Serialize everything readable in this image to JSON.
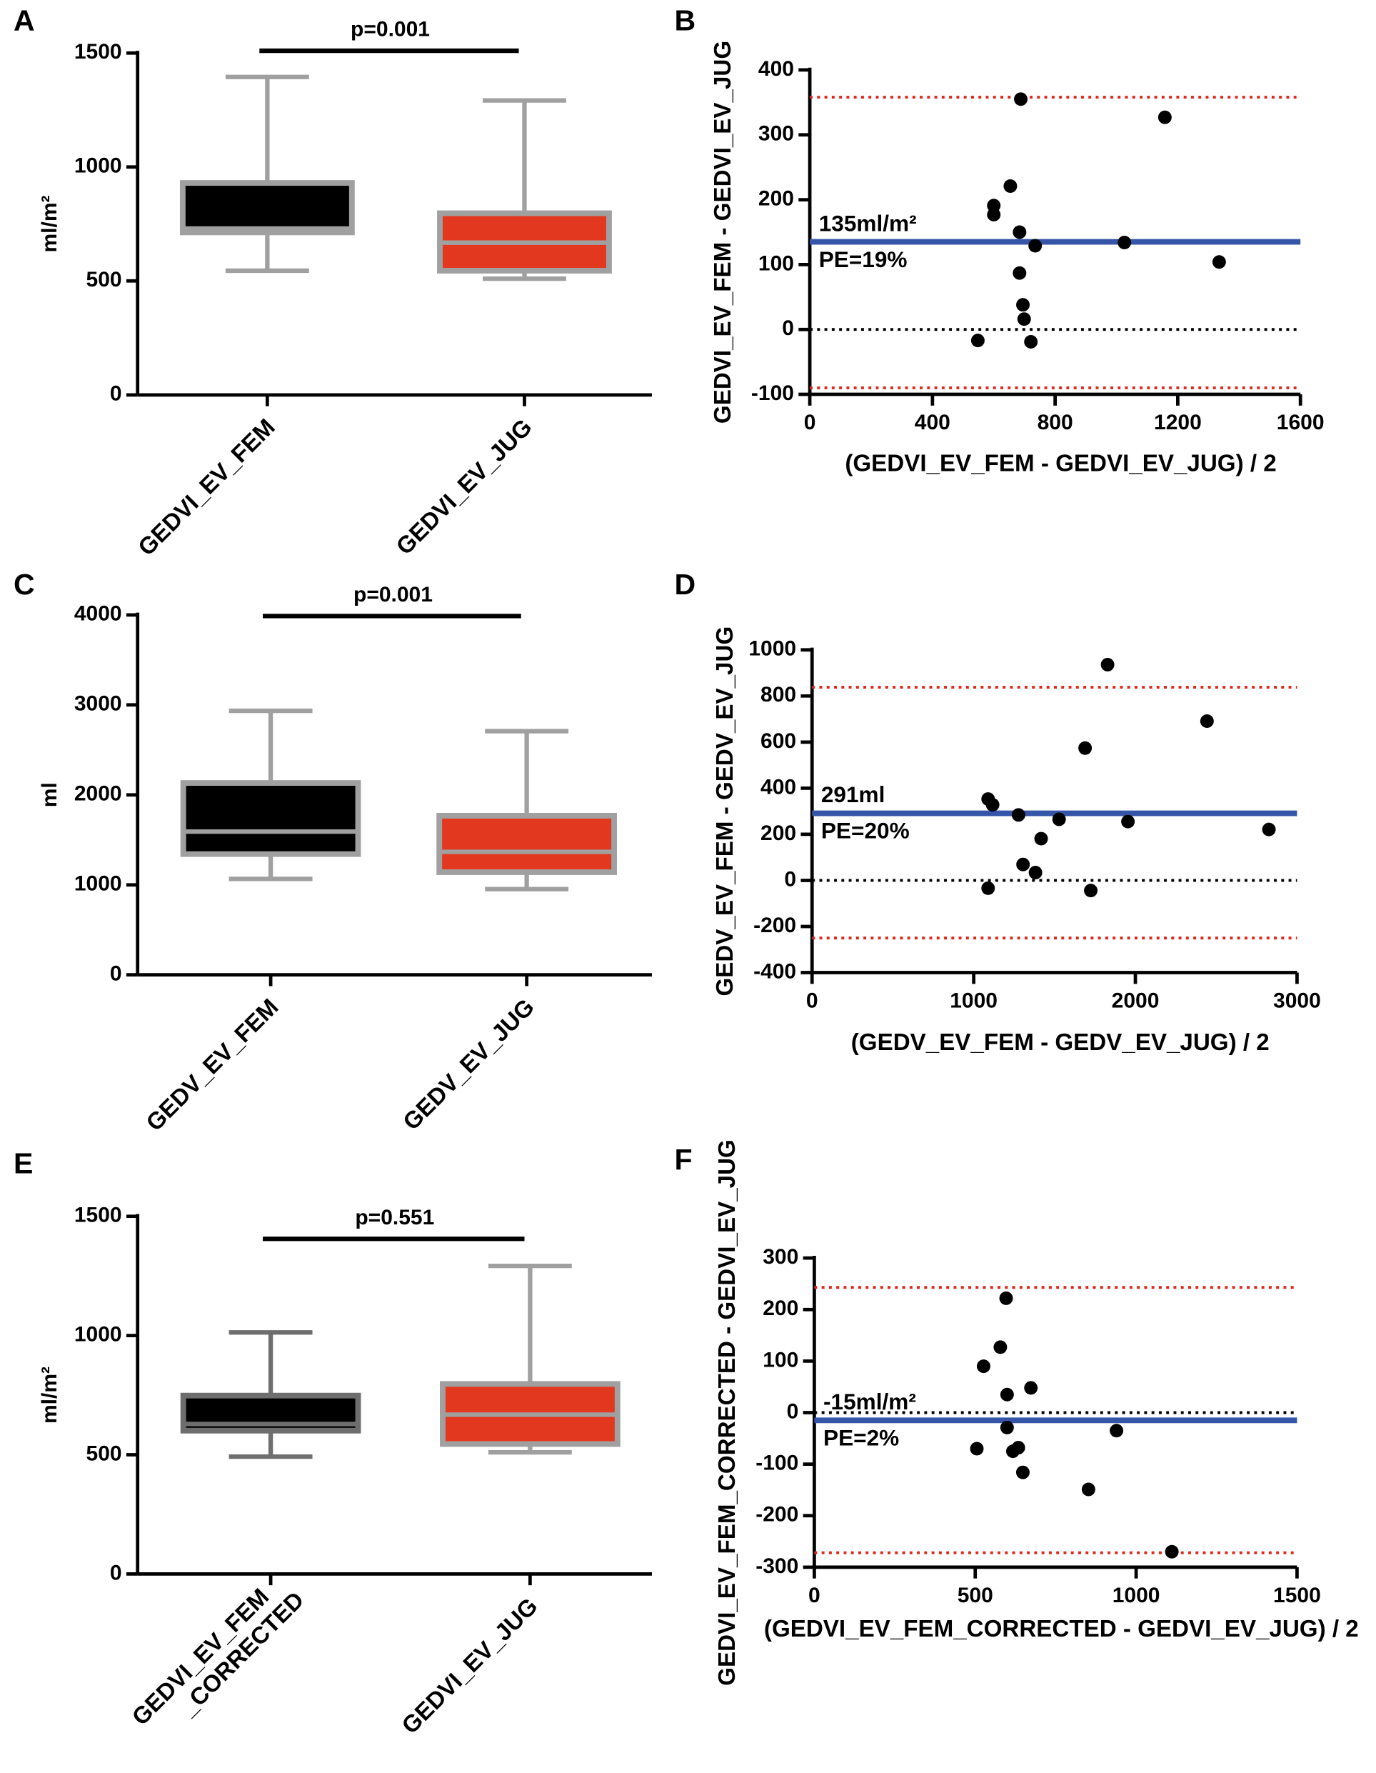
{
  "chart_data": [
    {
      "type": "box",
      "label": "A",
      "y_label": "ml/m²",
      "categories": [
        "GEDVI_EV_FEM",
        "GEDVI_EV_JUG"
      ],
      "boxes": [
        {
          "min": 545,
          "q1": 713,
          "median": 730,
          "q3": 930,
          "max": 1395
        },
        {
          "min": 510,
          "q1": 545,
          "median": 668,
          "q3": 797,
          "max": 1292
        }
      ],
      "colors": [
        "#000000",
        "#e2381f"
      ],
      "edge_colors": [
        "#a0a0a0",
        "#a0a0a0"
      ],
      "ylim": [
        0,
        1500
      ],
      "yticks": [
        0,
        500,
        1000,
        1500
      ],
      "p_value": "p=0.001"
    },
    {
      "type": "scatter",
      "label": "B",
      "x_label": "(GEDVI_EV_FEM - GEDVI_EV_JUG) / 2",
      "y_label": "GEDVI_EV_FEM - GEDVI_EV_JUG",
      "x": [
        548,
        600,
        600,
        654,
        684,
        688,
        684,
        695,
        699,
        735,
        721,
        1026,
        1158,
        1335
      ],
      "y": [
        -17,
        191,
        177,
        221,
        150,
        355,
        87,
        38,
        16,
        129,
        -19,
        134,
        327,
        104
      ],
      "mean": {
        "value": 135,
        "label": "135ml/m²"
      },
      "pe_label": "PE=19%",
      "limits": [
        -90,
        358
      ],
      "xlim": [
        0,
        1600
      ],
      "xticks": [
        0,
        400,
        800,
        1200,
        1600
      ],
      "ylim": [
        -100,
        400
      ],
      "yticks": [
        -100,
        0,
        100,
        200,
        300,
        400
      ]
    },
    {
      "type": "box",
      "label": "C",
      "y_label": "ml",
      "categories": [
        "GEDV_EV_FEM",
        "GEDV_EV_JUG"
      ],
      "boxes": [
        {
          "min": 1066,
          "q1": 1342,
          "median": 1592,
          "q3": 2132,
          "max": 2934
        },
        {
          "min": 953,
          "q1": 1141,
          "median": 1367,
          "q3": 1768,
          "max": 2708
        }
      ],
      "colors": [
        "#000000",
        "#e2381f"
      ],
      "edge_colors": [
        "#a0a0a0",
        "#a0a0a0"
      ],
      "ylim": [
        0,
        4000
      ],
      "yticks": [
        0,
        1000,
        2000,
        3000,
        4000
      ],
      "p_value": "p=0.001"
    },
    {
      "type": "scatter",
      "label": "D",
      "x_label": "(GEDV_EV_FEM - GEDV_EV_JUG) / 2",
      "y_label": "GEDV_EV_FEM - GEDV_EV_JUG",
      "x": [
        1089,
        1117,
        1089,
        1277,
        1305,
        1382,
        1417,
        1528,
        1689,
        1724,
        1828,
        1954,
        2443,
        2826
      ],
      "y": [
        353,
        328,
        -34,
        284,
        69,
        34,
        181,
        265,
        574,
        -44,
        936,
        255,
        691,
        221
      ],
      "mean": {
        "value": 291,
        "label": "291ml"
      },
      "pe_label": "PE=20%",
      "limits": [
        -250,
        838
      ],
      "xlim": [
        0,
        3000
      ],
      "xticks": [
        0,
        1000,
        2000,
        3000
      ],
      "ylim": [
        -400,
        1000
      ],
      "yticks": [
        -400,
        -200,
        0,
        200,
        400,
        600,
        800,
        1000
      ]
    },
    {
      "type": "box",
      "label": "E",
      "y_label": "ml/m²",
      "categories": [
        [
          "GEDVI_EV_FEM",
          "_CORRECTED"
        ],
        "GEDVI_EV_JUG"
      ],
      "boxes": [
        {
          "min": 492,
          "q1": 601,
          "median": 629,
          "q3": 748,
          "max": 1013
        },
        {
          "min": 510,
          "q1": 545,
          "median": 668,
          "q3": 797,
          "max": 1292
        }
      ],
      "colors": [
        "#000000",
        "#e2381f"
      ],
      "edge_colors": [
        "#6e6e6e",
        "#a0a0a0"
      ],
      "ylim": [
        0,
        1500
      ],
      "yticks": [
        0,
        500,
        1000,
        1500
      ],
      "p_value": "p=0.551"
    },
    {
      "type": "scatter",
      "label": "F",
      "x_label": "(GEDVI_EV_FEM_CORRECTED - GEDVI_EV_JUG) / 2",
      "y_label": "GEDVI_EV_FEM_CORRECTED - GEDVI_EV_JUG",
      "x": [
        505,
        526,
        578,
        596,
        599,
        599,
        617,
        634,
        648,
        673,
        852,
        939,
        1111
      ],
      "y": [
        -70,
        90,
        127,
        222,
        35,
        -29,
        -75,
        -68,
        -116,
        48,
        -149,
        -35,
        -270
      ],
      "mean": {
        "value": -15,
        "label": "-15ml/m²"
      },
      "pe_label": "PE=2%",
      "limits": [
        -272,
        243
      ],
      "xlim": [
        0,
        1500
      ],
      "xticks": [
        0,
        500,
        1000,
        1500
      ],
      "ylim": [
        -300,
        300
      ],
      "yticks": [
        -300,
        -200,
        -100,
        0,
        100,
        200,
        300
      ]
    }
  ]
}
